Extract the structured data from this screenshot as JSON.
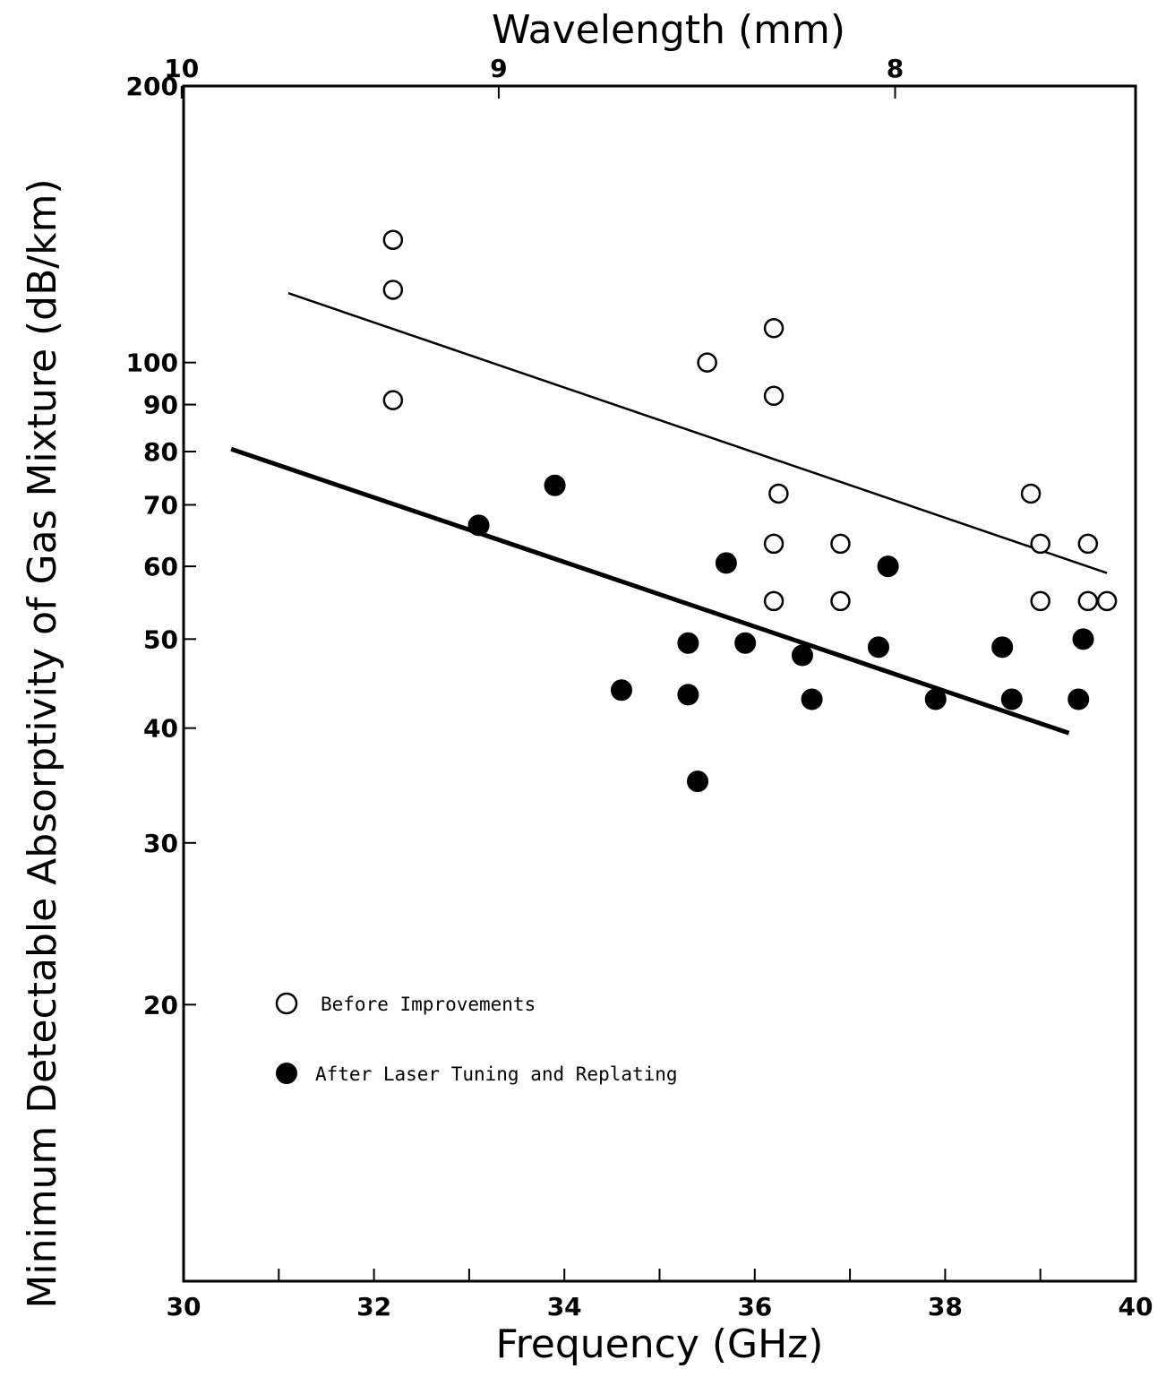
{
  "chart_data": {
    "type": "scatter",
    "title": "",
    "xlabel": "Frequency (GHz)",
    "ylabel": "Minimum Detectable Absorptivity of Gas Mixture (dB/km)",
    "x2label": "Wavelength (mm)",
    "xlim": [
      30,
      40
    ],
    "ylim": [
      10,
      200
    ],
    "yscale": "log",
    "grid": false,
    "legend_position": "bottom-left",
    "x_ticks": [
      "30",
      "32",
      "34",
      "36",
      "38",
      "40"
    ],
    "x2_ticks": [
      {
        "label": "10",
        "wavelength_mm": 10
      },
      {
        "label": "9",
        "wavelength_mm": 9
      },
      {
        "label": "8",
        "wavelength_mm": 8
      }
    ],
    "y_ticks": [
      {
        "label": "200",
        "value": 200
      },
      {
        "label": "100",
        "value": 100
      },
      {
        "label": "90",
        "value": 90
      },
      {
        "label": "80",
        "value": 80
      },
      {
        "label": "70",
        "value": 70
      },
      {
        "label": "60",
        "value": 60
      },
      {
        "label": "50",
        "value": 50
      },
      {
        "label": "40",
        "value": 40
      },
      {
        "label": "30",
        "value": 30
      },
      {
        "label": "20",
        "value": 20
      }
    ],
    "series": [
      {
        "name": "Before Improvements",
        "marker": "open-circle",
        "points": [
          [
            32.2,
            136
          ],
          [
            32.2,
            120
          ],
          [
            32.2,
            91
          ],
          [
            35.5,
            100
          ],
          [
            36.2,
            109
          ],
          [
            36.2,
            92
          ],
          [
            36.25,
            72
          ],
          [
            36.2,
            63.5
          ],
          [
            36.2,
            55
          ],
          [
            36.9,
            63.5
          ],
          [
            36.9,
            55
          ],
          [
            38.9,
            72
          ],
          [
            39.0,
            63.5
          ],
          [
            39.0,
            55
          ],
          [
            39.5,
            63.5
          ],
          [
            39.5,
            55
          ],
          [
            39.7,
            55
          ]
        ],
        "fit_line": [
          [
            31.1,
            119
          ],
          [
            39.7,
            59
          ]
        ]
      },
      {
        "name": "After Laser Tuning and Replating",
        "marker": "filled-circle",
        "points": [
          [
            33.1,
            66.5
          ],
          [
            33.9,
            73.5
          ],
          [
            34.6,
            44
          ],
          [
            35.3,
            49.5
          ],
          [
            35.3,
            43.5
          ],
          [
            35.4,
            35
          ],
          [
            35.7,
            60.5
          ],
          [
            35.9,
            49.5
          ],
          [
            36.5,
            48
          ],
          [
            36.6,
            43
          ],
          [
            37.3,
            49
          ],
          [
            37.4,
            60
          ],
          [
            37.9,
            43
          ],
          [
            38.6,
            49
          ],
          [
            38.7,
            43
          ],
          [
            39.4,
            43
          ],
          [
            39.45,
            50
          ]
        ],
        "fit_line": [
          [
            30.5,
            80.5
          ],
          [
            39.3,
            39.5
          ]
        ]
      }
    ]
  },
  "colors": {
    "ink": "#000000",
    "background": "#ffffff"
  }
}
